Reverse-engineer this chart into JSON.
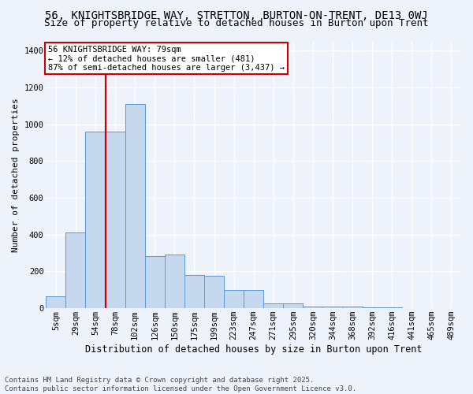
{
  "title": "56, KNIGHTSBRIDGE WAY, STRETTON, BURTON-ON-TRENT, DE13 0WJ",
  "subtitle": "Size of property relative to detached houses in Burton upon Trent",
  "xlabel": "Distribution of detached houses by size in Burton upon Trent",
  "ylabel": "Number of detached properties",
  "categories": [
    "5sqm",
    "29sqm",
    "54sqm",
    "78sqm",
    "102sqm",
    "126sqm",
    "150sqm",
    "175sqm",
    "199sqm",
    "223sqm",
    "247sqm",
    "271sqm",
    "295sqm",
    "320sqm",
    "344sqm",
    "368sqm",
    "392sqm",
    "416sqm",
    "441sqm",
    "465sqm",
    "489sqm"
  ],
  "values": [
    65,
    410,
    960,
    960,
    1110,
    285,
    290,
    180,
    175,
    100,
    100,
    25,
    25,
    10,
    10,
    8,
    5,
    3,
    2,
    2,
    1
  ],
  "bar_color": "#c5d8ed",
  "bar_edge_color": "#5b9bd5",
  "annotation_box_text": "56 KNIGHTSBRIDGE WAY: 79sqm\n← 12% of detached houses are smaller (481)\n87% of semi-detached houses are larger (3,437) →",
  "annotation_box_color": "#ffffff",
  "annotation_box_edge_color": "#cc0000",
  "vline_color": "#cc0000",
  "vline_xidx": 2.5,
  "ylim": [
    0,
    1450
  ],
  "yticks": [
    0,
    200,
    400,
    600,
    800,
    1000,
    1200,
    1400
  ],
  "background_color": "#eef2fa",
  "grid_color": "#ffffff",
  "footer_line1": "Contains HM Land Registry data © Crown copyright and database right 2025.",
  "footer_line2": "Contains public sector information licensed under the Open Government Licence v3.0.",
  "title_fontsize": 10,
  "subtitle_fontsize": 9,
  "xlabel_fontsize": 8.5,
  "ylabel_fontsize": 8,
  "tick_fontsize": 7.5,
  "footer_fontsize": 6.5,
  "ann_fontsize": 7.5
}
